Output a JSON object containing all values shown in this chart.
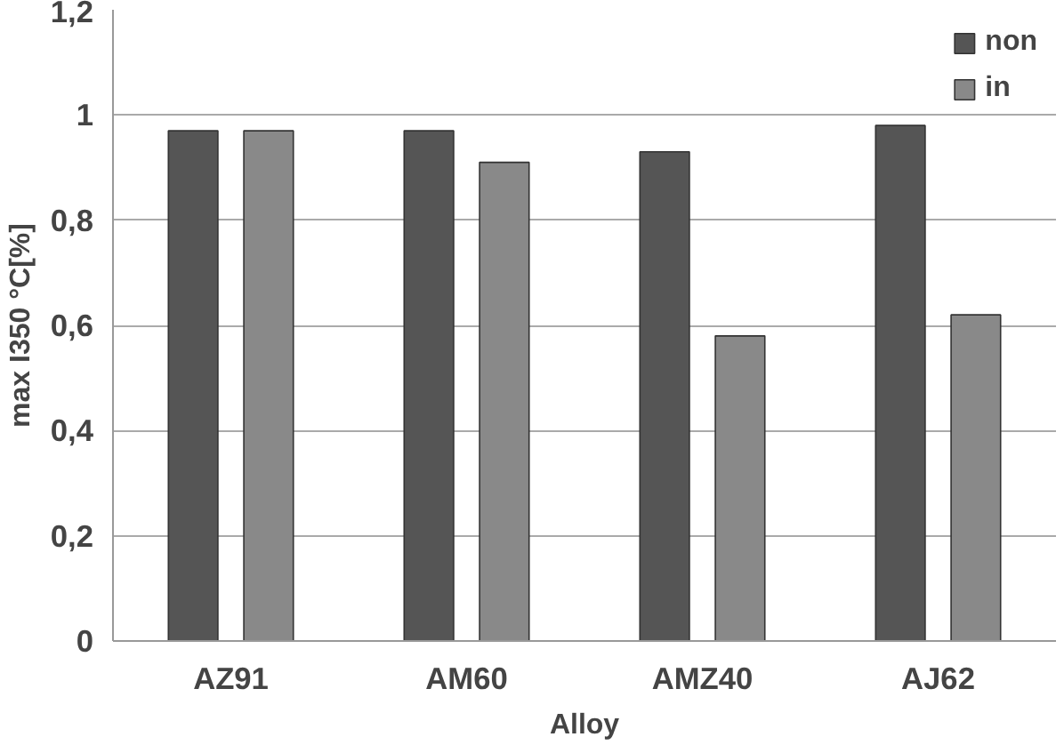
{
  "chart_data": {
    "type": "bar",
    "xlabel": "Alloy",
    "ylabel": "max I350 °C[%]",
    "categories": [
      "AZ91",
      "AM60",
      "AMZ40",
      "AJ62"
    ],
    "series": [
      {
        "name": "non",
        "color": "#555555",
        "values": [
          0.97,
          0.97,
          0.93,
          0.98
        ]
      },
      {
        "name": "in",
        "color": "#898989",
        "values": [
          0.97,
          0.91,
          0.58,
          0.62
        ]
      }
    ],
    "ylim": [
      0,
      1.2
    ],
    "yticks": [
      {
        "value": 0,
        "label": "0"
      },
      {
        "value": 0.2,
        "label": "0,2"
      },
      {
        "value": 0.4,
        "label": "0,4"
      },
      {
        "value": 0.6,
        "label": "0,6"
      },
      {
        "value": 0.8,
        "label": "0,8"
      },
      {
        "value": 1,
        "label": "1"
      },
      {
        "value": 1.2,
        "label": "1,2"
      }
    ],
    "grid": "y",
    "legend": "top right"
  }
}
